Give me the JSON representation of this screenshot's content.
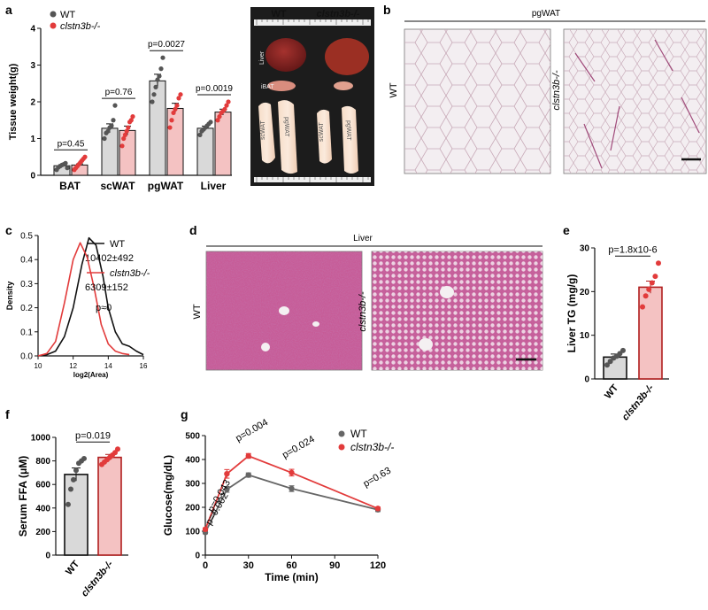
{
  "figure": {
    "panels": [
      "a",
      "b",
      "c",
      "d",
      "e",
      "f",
      "g"
    ]
  },
  "colors": {
    "wt": "#555555",
    "ko": "#e23b3b",
    "wt_fill": "#d9d9d9",
    "ko_fill": "#f4c2c2",
    "adipose_bg": "#f4f0f2",
    "liver_stain": "#b64a86"
  },
  "chart_data": [
    {
      "id": "a",
      "type": "bar",
      "ylabel": "Tissue weight(g)",
      "ylim": [
        0,
        4
      ],
      "yticks": [
        0,
        1,
        2,
        3,
        4
      ],
      "categories": [
        "BAT",
        "scWAT",
        "pgWAT",
        "Liver"
      ],
      "legend": [
        "WT",
        "clstn3b-/-"
      ],
      "series": [
        {
          "name": "WT",
          "values": [
            0.26,
            1.28,
            2.57,
            1.28
          ],
          "sem": [
            0.03,
            0.12,
            0.18,
            0.06
          ],
          "points": [
            [
              0.15,
              0.22,
              0.25,
              0.28,
              0.3,
              0.33,
              0.2
            ],
            [
              1.0,
              1.15,
              1.2,
              1.3,
              1.35,
              1.5,
              1.9
            ],
            [
              2.0,
              2.2,
              2.4,
              2.6,
              2.7,
              2.9,
              3.2
            ],
            [
              1.1,
              1.2,
              1.25,
              1.3,
              1.35,
              1.4,
              1.45
            ]
          ]
        },
        {
          "name": "clstn3b-/-",
          "values": [
            0.28,
            1.22,
            1.82,
            1.72
          ],
          "sem": [
            0.03,
            0.12,
            0.14,
            0.08
          ],
          "points": [
            [
              0.15,
              0.2,
              0.25,
              0.3,
              0.35,
              0.4,
              0.45,
              0.5
            ],
            [
              0.8,
              1.0,
              1.1,
              1.2,
              1.3,
              1.45,
              1.5,
              1.6
            ],
            [
              1.3,
              1.5,
              1.7,
              1.8,
              1.9,
              2.1,
              2.2
            ],
            [
              1.5,
              1.6,
              1.7,
              1.75,
              1.8,
              1.9,
              2.0
            ]
          ]
        }
      ],
      "pvalues": [
        "p=0.45",
        "p=0.76",
        "p=0.0027",
        "p=0.0019"
      ]
    },
    {
      "id": "c",
      "type": "line",
      "xlabel": "log2(Area)",
      "ylabel": "Density",
      "xlim": [
        10,
        16
      ],
      "xticks": [
        10,
        12,
        14,
        16
      ],
      "ylim": [
        0,
        0.5
      ],
      "yticks": [
        0.0,
        0.1,
        0.2,
        0.3,
        0.4,
        0.5
      ],
      "series": [
        {
          "name": "WT",
          "stat": "10402±492",
          "x": [
            10.0,
            10.5,
            11.0,
            11.5,
            12.0,
            12.5,
            12.9,
            13.3,
            13.7,
            14.0,
            14.4,
            14.8,
            15.2,
            15.6,
            16.0
          ],
          "y": [
            0.0,
            0.005,
            0.02,
            0.08,
            0.2,
            0.38,
            0.49,
            0.46,
            0.33,
            0.2,
            0.1,
            0.05,
            0.04,
            0.02,
            0.005
          ]
        },
        {
          "name": "clstn3b-/-",
          "stat": "6309±152",
          "x": [
            10.0,
            10.5,
            11.0,
            11.5,
            12.0,
            12.4,
            12.8,
            13.2,
            13.6,
            14.0,
            14.4,
            14.8,
            15.2
          ],
          "y": [
            0.0,
            0.01,
            0.06,
            0.22,
            0.4,
            0.47,
            0.41,
            0.28,
            0.13,
            0.05,
            0.02,
            0.01,
            0.005
          ]
        }
      ],
      "pvalue": "p≈0"
    },
    {
      "id": "e",
      "type": "bar",
      "ylabel": "Liver TG (mg/g)",
      "ylim": [
        0,
        30
      ],
      "yticks": [
        0,
        10,
        20,
        30
      ],
      "categories": [
        "WT",
        "clstn3b-/-"
      ],
      "values": [
        5.0,
        21.0
      ],
      "sem": [
        0.7,
        1.4
      ],
      "points": [
        [
          3.2,
          4.0,
          4.8,
          5.2,
          5.8,
          6.5
        ],
        [
          16.5,
          19.0,
          20.5,
          22.0,
          23.5,
          26.5
        ]
      ],
      "pvalue": "p=1.8x10-6"
    },
    {
      "id": "f",
      "type": "bar",
      "ylabel": "Serum FFA (μM)",
      "ylim": [
        0,
        1000
      ],
      "yticks": [
        0,
        200,
        400,
        600,
        800,
        1000
      ],
      "categories": [
        "WT",
        "clstn3b-/-"
      ],
      "values": [
        685,
        830
      ],
      "sem": [
        55,
        25
      ],
      "points": [
        [
          430,
          560,
          640,
          720,
          780,
          800,
          820
        ],
        [
          770,
          790,
          810,
          830,
          850,
          870,
          900
        ]
      ],
      "pvalue": "p=0.019"
    },
    {
      "id": "g",
      "type": "line",
      "xlabel": "Time (min)",
      "ylabel": "Glucose(mg/dL)",
      "xlim": [
        0,
        120
      ],
      "xticks": [
        0,
        30,
        60,
        90,
        120
      ],
      "ylim": [
        0,
        500
      ],
      "yticks": [
        0,
        100,
        200,
        300,
        400,
        500
      ],
      "x": [
        0,
        15,
        30,
        60,
        120
      ],
      "series": [
        {
          "name": "WT",
          "values": [
            95,
            275,
            335,
            278,
            190
          ],
          "sem": [
            6,
            12,
            9,
            12,
            8
          ]
        },
        {
          "name": "clstn3b-/-",
          "values": [
            108,
            340,
            415,
            345,
            195
          ],
          "sem": [
            6,
            18,
            10,
            14,
            6
          ]
        }
      ],
      "pvalues": [
        {
          "x": 0,
          "text": "p=0.002"
        },
        {
          "x": 15,
          "text": "p=0.043"
        },
        {
          "x": 30,
          "text": "p=0.004"
        },
        {
          "x": 60,
          "text": "p=0.024"
        },
        {
          "x": 120,
          "text": "p=0.63"
        }
      ]
    }
  ],
  "photo": {
    "header_wt": "WT",
    "header_ko": "clstn3b-/-",
    "labels": [
      "Liver",
      "iBAT",
      "scWAT",
      "pgWAT",
      "scWAT",
      "pgWAT"
    ]
  },
  "histology_b": {
    "title": "pgWAT",
    "row_label": "WT",
    "row_label_ko": "clstn3b-/-"
  },
  "histology_d": {
    "title": "Liver",
    "row_label": "WT",
    "row_label_ko": "clstn3b-/-"
  }
}
